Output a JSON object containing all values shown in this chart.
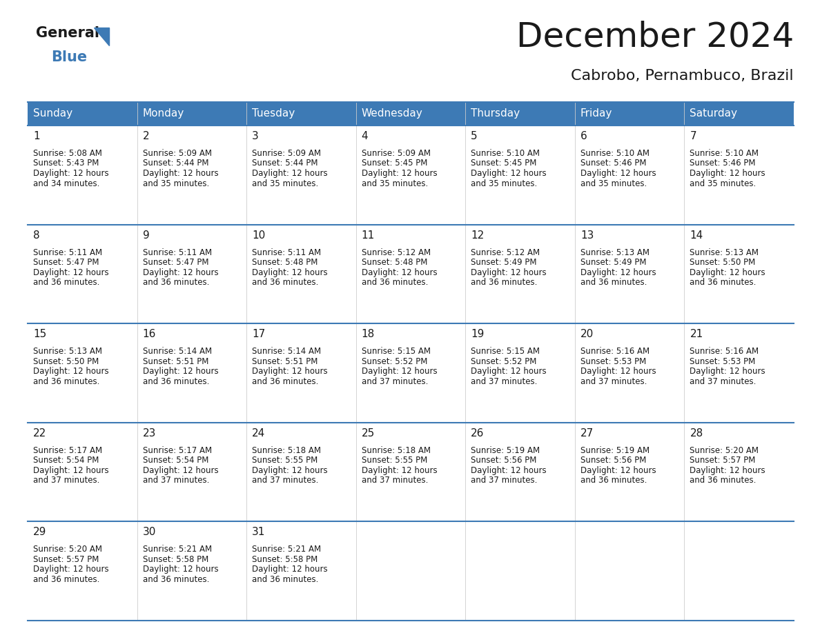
{
  "title": "December 2024",
  "subtitle": "Cabrobo, Pernambuco, Brazil",
  "header_bg_color": "#3d7ab5",
  "header_text_color": "#ffffff",
  "cell_bg_color": "#ffffff",
  "border_color": "#3d7ab5",
  "text_color": "#1a1a1a",
  "day_names": [
    "Sunday",
    "Monday",
    "Tuesday",
    "Wednesday",
    "Thursday",
    "Friday",
    "Saturday"
  ],
  "weeks": [
    [
      {
        "day": "1",
        "sunrise": "5:08 AM",
        "sunset": "5:43 PM",
        "daylight_h": "12 hours",
        "daylight_m": "and 34 minutes."
      },
      {
        "day": "2",
        "sunrise": "5:09 AM",
        "sunset": "5:44 PM",
        "daylight_h": "12 hours",
        "daylight_m": "and 35 minutes."
      },
      {
        "day": "3",
        "sunrise": "5:09 AM",
        "sunset": "5:44 PM",
        "daylight_h": "12 hours",
        "daylight_m": "and 35 minutes."
      },
      {
        "day": "4",
        "sunrise": "5:09 AM",
        "sunset": "5:45 PM",
        "daylight_h": "12 hours",
        "daylight_m": "and 35 minutes."
      },
      {
        "day": "5",
        "sunrise": "5:10 AM",
        "sunset": "5:45 PM",
        "daylight_h": "12 hours",
        "daylight_m": "and 35 minutes."
      },
      {
        "day": "6",
        "sunrise": "5:10 AM",
        "sunset": "5:46 PM",
        "daylight_h": "12 hours",
        "daylight_m": "and 35 minutes."
      },
      {
        "day": "7",
        "sunrise": "5:10 AM",
        "sunset": "5:46 PM",
        "daylight_h": "12 hours",
        "daylight_m": "and 35 minutes."
      }
    ],
    [
      {
        "day": "8",
        "sunrise": "5:11 AM",
        "sunset": "5:47 PM",
        "daylight_h": "12 hours",
        "daylight_m": "and 36 minutes."
      },
      {
        "day": "9",
        "sunrise": "5:11 AM",
        "sunset": "5:47 PM",
        "daylight_h": "12 hours",
        "daylight_m": "and 36 minutes."
      },
      {
        "day": "10",
        "sunrise": "5:11 AM",
        "sunset": "5:48 PM",
        "daylight_h": "12 hours",
        "daylight_m": "and 36 minutes."
      },
      {
        "day": "11",
        "sunrise": "5:12 AM",
        "sunset": "5:48 PM",
        "daylight_h": "12 hours",
        "daylight_m": "and 36 minutes."
      },
      {
        "day": "12",
        "sunrise": "5:12 AM",
        "sunset": "5:49 PM",
        "daylight_h": "12 hours",
        "daylight_m": "and 36 minutes."
      },
      {
        "day": "13",
        "sunrise": "5:13 AM",
        "sunset": "5:49 PM",
        "daylight_h": "12 hours",
        "daylight_m": "and 36 minutes."
      },
      {
        "day": "14",
        "sunrise": "5:13 AM",
        "sunset": "5:50 PM",
        "daylight_h": "12 hours",
        "daylight_m": "and 36 minutes."
      }
    ],
    [
      {
        "day": "15",
        "sunrise": "5:13 AM",
        "sunset": "5:50 PM",
        "daylight_h": "12 hours",
        "daylight_m": "and 36 minutes."
      },
      {
        "day": "16",
        "sunrise": "5:14 AM",
        "sunset": "5:51 PM",
        "daylight_h": "12 hours",
        "daylight_m": "and 36 minutes."
      },
      {
        "day": "17",
        "sunrise": "5:14 AM",
        "sunset": "5:51 PM",
        "daylight_h": "12 hours",
        "daylight_m": "and 36 minutes."
      },
      {
        "day": "18",
        "sunrise": "5:15 AM",
        "sunset": "5:52 PM",
        "daylight_h": "12 hours",
        "daylight_m": "and 37 minutes."
      },
      {
        "day": "19",
        "sunrise": "5:15 AM",
        "sunset": "5:52 PM",
        "daylight_h": "12 hours",
        "daylight_m": "and 37 minutes."
      },
      {
        "day": "20",
        "sunrise": "5:16 AM",
        "sunset": "5:53 PM",
        "daylight_h": "12 hours",
        "daylight_m": "and 37 minutes."
      },
      {
        "day": "21",
        "sunrise": "5:16 AM",
        "sunset": "5:53 PM",
        "daylight_h": "12 hours",
        "daylight_m": "and 37 minutes."
      }
    ],
    [
      {
        "day": "22",
        "sunrise": "5:17 AM",
        "sunset": "5:54 PM",
        "daylight_h": "12 hours",
        "daylight_m": "and 37 minutes."
      },
      {
        "day": "23",
        "sunrise": "5:17 AM",
        "sunset": "5:54 PM",
        "daylight_h": "12 hours",
        "daylight_m": "and 37 minutes."
      },
      {
        "day": "24",
        "sunrise": "5:18 AM",
        "sunset": "5:55 PM",
        "daylight_h": "12 hours",
        "daylight_m": "and 37 minutes."
      },
      {
        "day": "25",
        "sunrise": "5:18 AM",
        "sunset": "5:55 PM",
        "daylight_h": "12 hours",
        "daylight_m": "and 37 minutes."
      },
      {
        "day": "26",
        "sunrise": "5:19 AM",
        "sunset": "5:56 PM",
        "daylight_h": "12 hours",
        "daylight_m": "and 37 minutes."
      },
      {
        "day": "27",
        "sunrise": "5:19 AM",
        "sunset": "5:56 PM",
        "daylight_h": "12 hours",
        "daylight_m": "and 36 minutes."
      },
      {
        "day": "28",
        "sunrise": "5:20 AM",
        "sunset": "5:57 PM",
        "daylight_h": "12 hours",
        "daylight_m": "and 36 minutes."
      }
    ],
    [
      {
        "day": "29",
        "sunrise": "5:20 AM",
        "sunset": "5:57 PM",
        "daylight_h": "12 hours",
        "daylight_m": "and 36 minutes."
      },
      {
        "day": "30",
        "sunrise": "5:21 AM",
        "sunset": "5:58 PM",
        "daylight_h": "12 hours",
        "daylight_m": "and 36 minutes."
      },
      {
        "day": "31",
        "sunrise": "5:21 AM",
        "sunset": "5:58 PM",
        "daylight_h": "12 hours",
        "daylight_m": "and 36 minutes."
      },
      null,
      null,
      null,
      null
    ]
  ],
  "background_color": "#ffffff",
  "logo_general_color": "#1a1a1a",
  "logo_blue_color": "#3d7ab5",
  "logo_triangle_color": "#3d7ab5",
  "title_fontsize": 36,
  "subtitle_fontsize": 16,
  "header_fontsize": 11,
  "day_num_fontsize": 11,
  "cell_fontsize": 8.5
}
